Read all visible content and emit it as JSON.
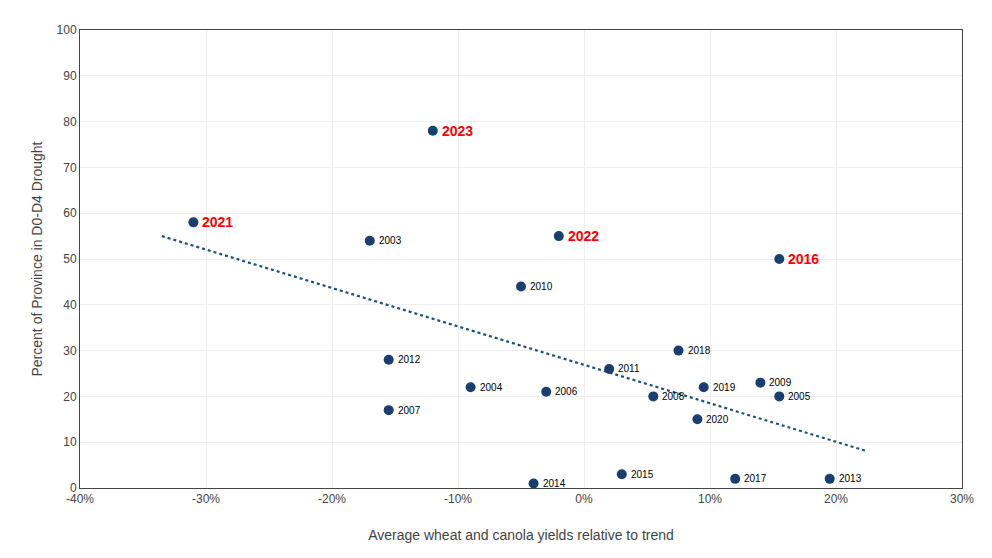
{
  "chart_data": {
    "type": "scatter",
    "xlabel": "Average wheat and canola yields relative to trend",
    "ylabel": "Percent of Province in D0-D4 Drought",
    "xlim": [
      -0.4,
      0.3
    ],
    "ylim": [
      0,
      100
    ],
    "xticks": [
      {
        "value": -0.4,
        "label": "-40%"
      },
      {
        "value": -0.3,
        "label": "-30%"
      },
      {
        "value": -0.2,
        "label": "-20%"
      },
      {
        "value": -0.1,
        "label": "-10%"
      },
      {
        "value": 0.0,
        "label": "0%"
      },
      {
        "value": 0.1,
        "label": "10%"
      },
      {
        "value": 0.2,
        "label": "20%"
      },
      {
        "value": 0.3,
        "label": "30%"
      }
    ],
    "yticks": [
      0,
      10,
      20,
      30,
      40,
      50,
      60,
      70,
      80,
      90,
      100
    ],
    "grid": true,
    "series": [
      {
        "type": "scatter",
        "color": "#1a3f6f",
        "marker": "circle",
        "x": [
          -0.31,
          -0.12,
          -0.02,
          0.155,
          -0.17,
          -0.05,
          -0.155,
          -0.155,
          -0.09,
          -0.03,
          -0.04,
          0.02,
          0.055,
          0.03,
          0.075,
          0.095,
          0.09,
          0.12,
          0.14,
          0.155,
          0.195
        ],
        "values": [
          58,
          78,
          55,
          50,
          54,
          44,
          28,
          17,
          22,
          21,
          1,
          26,
          20,
          3,
          30,
          22,
          15,
          2,
          23,
          20,
          2
        ]
      },
      {
        "type": "line",
        "color": "#1a5276",
        "line_style": "dotted",
        "x": [
          -0.335,
          0.225
        ],
        "values": [
          55,
          8
        ]
      }
    ],
    "annotations": [
      {
        "text": "2021",
        "x": -0.31,
        "y": 58,
        "color": "red"
      },
      {
        "text": "2023",
        "x": -0.12,
        "y": 78,
        "color": "red"
      },
      {
        "text": "2022",
        "x": -0.02,
        "y": 55,
        "color": "red"
      },
      {
        "text": "2016",
        "x": 0.155,
        "y": 50,
        "color": "red"
      },
      {
        "text": "2003",
        "x": -0.17,
        "y": 54,
        "color": "black"
      },
      {
        "text": "2010",
        "x": -0.05,
        "y": 44,
        "color": "black"
      },
      {
        "text": "2012",
        "x": -0.155,
        "y": 28,
        "color": "black"
      },
      {
        "text": "2007",
        "x": -0.155,
        "y": 17,
        "color": "black"
      },
      {
        "text": "2004",
        "x": -0.09,
        "y": 22,
        "color": "black"
      },
      {
        "text": "2006",
        "x": -0.03,
        "y": 21,
        "color": "black"
      },
      {
        "text": "2014",
        "x": -0.04,
        "y": 1,
        "color": "black"
      },
      {
        "text": "2011",
        "x": 0.02,
        "y": 26,
        "color": "black"
      },
      {
        "text": "2008",
        "x": 0.055,
        "y": 20,
        "color": "black"
      },
      {
        "text": "2015",
        "x": 0.03,
        "y": 3,
        "color": "black"
      },
      {
        "text": "2018",
        "x": 0.075,
        "y": 30,
        "color": "black"
      },
      {
        "text": "2019",
        "x": 0.095,
        "y": 22,
        "color": "black"
      },
      {
        "text": "2020",
        "x": 0.09,
        "y": 15,
        "color": "black"
      },
      {
        "text": "2017",
        "x": 0.12,
        "y": 2,
        "color": "black"
      },
      {
        "text": "2009",
        "x": 0.14,
        "y": 23,
        "color": "black"
      },
      {
        "text": "2005",
        "x": 0.155,
        "y": 20,
        "color": "black"
      },
      {
        "text": "2013",
        "x": 0.195,
        "y": 2,
        "color": "black"
      }
    ]
  }
}
